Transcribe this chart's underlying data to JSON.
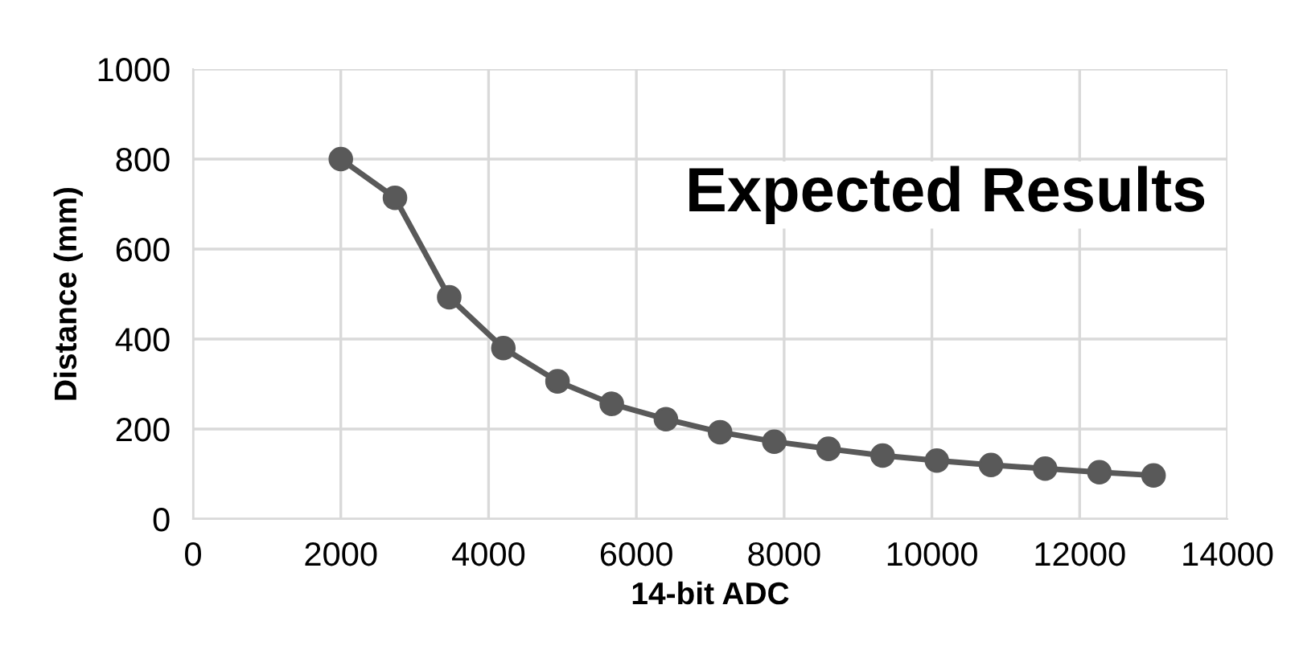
{
  "chart_data": {
    "type": "line",
    "xlabel": "14-bit ADC",
    "ylabel": "Distance (mm)",
    "annotations": [
      "Expected Results"
    ],
    "x": [
      2000,
      2733,
      3467,
      4200,
      4933,
      5667,
      6400,
      7133,
      7867,
      8600,
      9333,
      10067,
      10800,
      11533,
      12267,
      13000
    ],
    "series": [
      {
        "color": "#595959",
        "values": [
          800,
          714,
          493,
          380,
          306,
          256,
          222,
          193,
          172,
          156,
          141,
          130,
          120,
          112,
          104,
          97
        ]
      }
    ],
    "xlim": [
      0,
      14000
    ],
    "xticks": [
      0,
      2000,
      4000,
      6000,
      8000,
      10000,
      12000,
      14000
    ],
    "ylim": [
      0,
      1000
    ],
    "yticks": [
      0,
      200,
      400,
      600,
      800,
      1000
    ],
    "grid": true,
    "marker": "circle",
    "line_style": "solid",
    "legend": false
  }
}
